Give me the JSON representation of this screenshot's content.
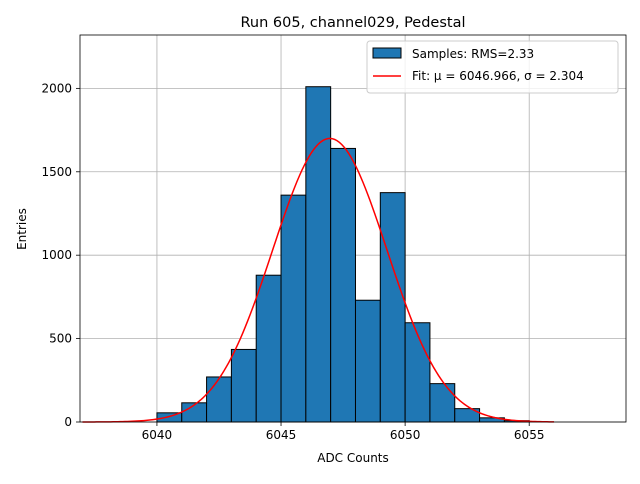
{
  "chart_data": {
    "type": "bar",
    "title": "Run 605, channel029, Pedestal",
    "xlabel": "ADC Counts",
    "ylabel": "Entries",
    "xlim": [
      6036.9,
      6058.9
    ],
    "ylim": [
      0,
      2320
    ],
    "xticks": [
      6040,
      6045,
      6050,
      6055
    ],
    "yticks": [
      0,
      500,
      1000,
      1500,
      2000
    ],
    "grid": true,
    "legend_position": "top-right",
    "bin_width": 1,
    "histogram": {
      "name": "Samples: RMS=2.33",
      "color": "#1f77b4",
      "edgecolor": "#000000",
      "bins": [
        {
          "x": 6040,
          "value": 55
        },
        {
          "x": 6041,
          "value": 115
        },
        {
          "x": 6042,
          "value": 270
        },
        {
          "x": 6043,
          "value": 435
        },
        {
          "x": 6044,
          "value": 880
        },
        {
          "x": 6045,
          "value": 1360
        },
        {
          "x": 6046,
          "value": 2010
        },
        {
          "x": 6047,
          "value": 1640
        },
        {
          "x": 6048,
          "value": 730
        },
        {
          "x": 6049,
          "value": 1375
        },
        {
          "x": 6050,
          "value": 595
        },
        {
          "x": 6051,
          "value": 230
        },
        {
          "x": 6052,
          "value": 80
        },
        {
          "x": 6053,
          "value": 25
        },
        {
          "x": 6054,
          "value": 8
        }
      ]
    },
    "fit": {
      "name": "Fit: μ = 6046.966, σ = 2.304",
      "color": "#ff0000",
      "mu": 6046.966,
      "sigma": 2.304,
      "amplitude": 1700,
      "x_range": [
        6037,
        6056
      ]
    }
  }
}
